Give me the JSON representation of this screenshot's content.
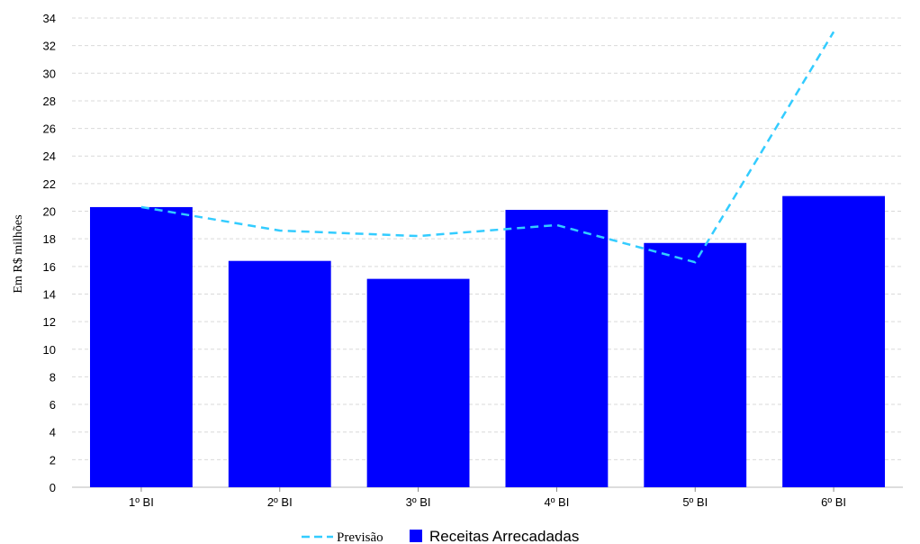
{
  "chart_data": {
    "type": "bar",
    "title": "",
    "xlabel": "",
    "ylabel": "Em R$ milhões",
    "categories": [
      "1º BI",
      "2º BI",
      "3º BI",
      "4º BI",
      "5º BI",
      "6º BI"
    ],
    "ylim": [
      0,
      34
    ],
    "yticks": [
      0,
      2,
      4,
      6,
      8,
      10,
      12,
      14,
      16,
      18,
      20,
      22,
      24,
      26,
      28,
      30,
      32,
      34
    ],
    "grid": true,
    "legend_position": "bottom",
    "series": [
      {
        "name": "Receitas Arrecadadas",
        "kind": "bar",
        "color": "#0000ff",
        "values": [
          20.3,
          16.4,
          15.1,
          20.1,
          17.7,
          21.1
        ]
      },
      {
        "name": "Previsão",
        "kind": "line",
        "style": "dashed",
        "color": "#33ccff",
        "values": [
          20.3,
          18.6,
          18.2,
          19.0,
          16.3,
          33.0
        ]
      }
    ]
  }
}
